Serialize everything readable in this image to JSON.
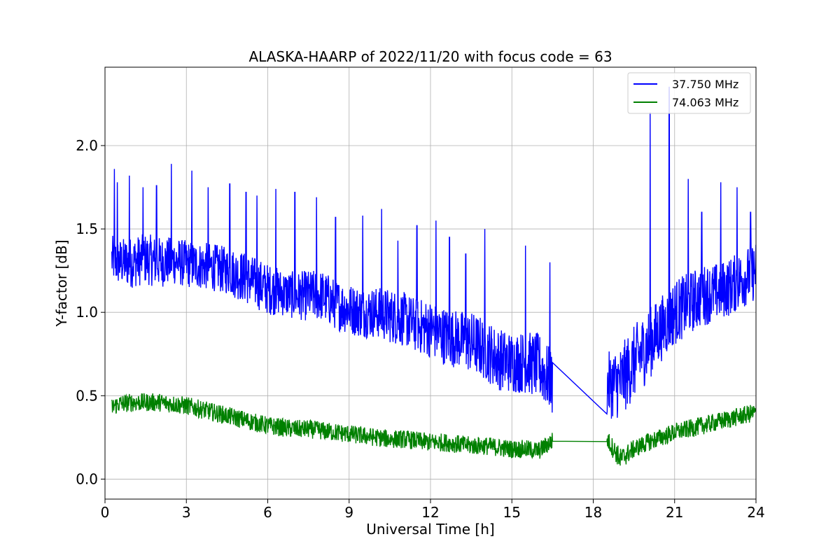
{
  "chart_data": {
    "type": "line",
    "title": "ALASKA-HAARP of 2022/11/20 with focus code = 63",
    "xlabel": "Universal Time [h]",
    "ylabel": "Y-factor [dB]",
    "xlim": [
      0,
      24
    ],
    "ylim": [
      -0.12,
      2.47
    ],
    "xticks": [
      0,
      3,
      6,
      9,
      12,
      15,
      18,
      21,
      24
    ],
    "xtick_labels": [
      "0",
      "3",
      "6",
      "9",
      "12",
      "15",
      "18",
      "21",
      "24"
    ],
    "yticks": [
      0.0,
      0.5,
      1.0,
      1.5,
      2.0
    ],
    "ytick_labels": [
      "0.0",
      "0.5",
      "1.0",
      "1.5",
      "2.0"
    ],
    "grid": true,
    "legend_position": "top-right",
    "series": [
      {
        "name": "37.750 MHz",
        "color": "#0000ff",
        "x": [
          0.25,
          0.5,
          1,
          1.5,
          2,
          2.5,
          3,
          3.5,
          4,
          4.5,
          5,
          5.5,
          6,
          6.5,
          7,
          7.5,
          8,
          8.5,
          9,
          9.5,
          10,
          10.5,
          11,
          11.5,
          12,
          12.5,
          13,
          13.5,
          14,
          14.5,
          15,
          15.5,
          16,
          16.5,
          18.5,
          19,
          19.5,
          20,
          20.5,
          21,
          21.5,
          22,
          22.5,
          23,
          23.5,
          24
        ],
        "y": [
          1.32,
          1.3,
          1.3,
          1.32,
          1.3,
          1.31,
          1.29,
          1.28,
          1.27,
          1.25,
          1.22,
          1.18,
          1.14,
          1.12,
          1.1,
          1.1,
          1.1,
          1.05,
          1.02,
          1.0,
          1.0,
          0.98,
          0.96,
          0.92,
          0.9,
          0.86,
          0.84,
          0.82,
          0.78,
          0.72,
          0.7,
          0.7,
          0.68,
          0.57,
          0.56,
          0.58,
          0.7,
          0.8,
          0.9,
          1.0,
          1.05,
          1.1,
          1.12,
          1.15,
          1.2,
          1.25
        ],
        "noise": [
          0.13,
          0.13,
          0.14,
          0.14,
          0.14,
          0.13,
          0.13,
          0.13,
          0.13,
          0.13,
          0.14,
          0.14,
          0.14,
          0.13,
          0.13,
          0.14,
          0.14,
          0.14,
          0.14,
          0.14,
          0.14,
          0.15,
          0.15,
          0.15,
          0.16,
          0.16,
          0.16,
          0.17,
          0.17,
          0.17,
          0.17,
          0.17,
          0.18,
          0.18,
          0.18,
          0.2,
          0.2,
          0.2,
          0.18,
          0.18,
          0.17,
          0.17,
          0.16,
          0.16,
          0.16,
          0.16
        ],
        "spikes": [
          [
            0.35,
            1.86
          ],
          [
            0.45,
            1.78
          ],
          [
            0.9,
            1.82
          ],
          [
            1.4,
            1.75
          ],
          [
            1.9,
            1.76
          ],
          [
            2.45,
            1.89
          ],
          [
            3.2,
            1.85
          ],
          [
            3.8,
            1.75
          ],
          [
            4.6,
            1.77
          ],
          [
            5.2,
            1.72
          ],
          [
            5.6,
            1.7
          ],
          [
            6.3,
            1.74
          ],
          [
            7.0,
            1.72
          ],
          [
            7.8,
            1.69
          ],
          [
            8.5,
            1.57
          ],
          [
            9.5,
            1.58
          ],
          [
            10.2,
            1.62
          ],
          [
            10.8,
            1.43
          ],
          [
            11.5,
            1.52
          ],
          [
            12.2,
            1.55
          ],
          [
            12.7,
            1.45
          ],
          [
            13.3,
            1.35
          ],
          [
            14.0,
            1.5
          ],
          [
            15.5,
            1.4
          ],
          [
            16.4,
            1.3
          ],
          [
            20.1,
            2.2
          ],
          [
            20.8,
            2.35
          ],
          [
            21.5,
            1.8
          ],
          [
            22.0,
            1.6
          ],
          [
            22.7,
            1.78
          ],
          [
            23.3,
            1.75
          ],
          [
            23.8,
            1.6
          ]
        ]
      },
      {
        "name": "74.063 MHz",
        "color": "#008000",
        "x": [
          0.25,
          0.5,
          1,
          1.5,
          2,
          2.5,
          3,
          3.5,
          4,
          4.5,
          5,
          5.5,
          6,
          6.5,
          7,
          7.5,
          8,
          8.5,
          9,
          9.5,
          10,
          10.5,
          11,
          11.5,
          12,
          12.5,
          13,
          13.5,
          14,
          14.5,
          15,
          15.5,
          16,
          16.5,
          18.5,
          19,
          19.5,
          20,
          20.5,
          21,
          21.5,
          22,
          22.5,
          23,
          23.5,
          24
        ],
        "y": [
          0.43,
          0.45,
          0.46,
          0.46,
          0.46,
          0.45,
          0.44,
          0.42,
          0.4,
          0.38,
          0.36,
          0.34,
          0.32,
          0.31,
          0.3,
          0.3,
          0.29,
          0.28,
          0.27,
          0.26,
          0.25,
          0.24,
          0.24,
          0.23,
          0.22,
          0.22,
          0.21,
          0.2,
          0.2,
          0.19,
          0.18,
          0.18,
          0.17,
          0.23,
          0.24,
          0.12,
          0.18,
          0.22,
          0.25,
          0.28,
          0.3,
          0.32,
          0.34,
          0.36,
          0.38,
          0.4
        ],
        "noise": [
          0.05,
          0.05,
          0.05,
          0.05,
          0.05,
          0.05,
          0.05,
          0.05,
          0.05,
          0.05,
          0.05,
          0.05,
          0.05,
          0.05,
          0.05,
          0.05,
          0.05,
          0.05,
          0.05,
          0.05,
          0.05,
          0.05,
          0.05,
          0.05,
          0.05,
          0.05,
          0.05,
          0.05,
          0.05,
          0.05,
          0.05,
          0.05,
          0.05,
          0.05,
          0.05,
          0.06,
          0.05,
          0.05,
          0.05,
          0.05,
          0.05,
          0.05,
          0.05,
          0.05,
          0.05,
          0.05
        ],
        "spikes": []
      }
    ]
  }
}
